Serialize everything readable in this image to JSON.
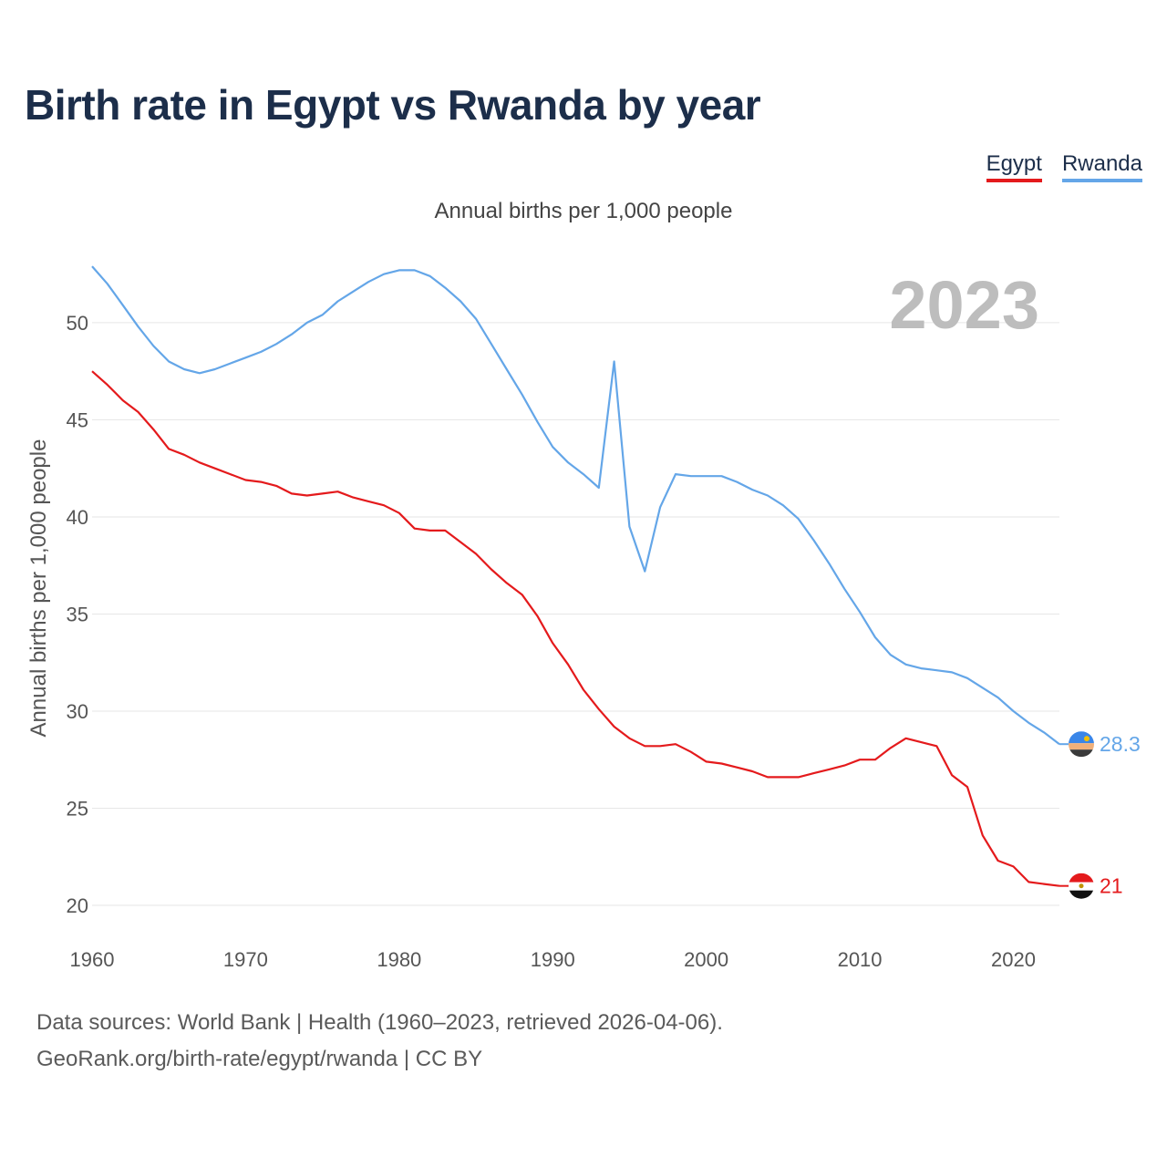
{
  "title": "Birth rate in Egypt vs Rwanda by year",
  "legend": {
    "egypt": "Egypt",
    "rwanda": "Rwanda"
  },
  "subtitle": "Annual births per 1,000 people",
  "year_label": "2023",
  "footer": {
    "line1": "Data sources: World Bank | Health (1960–2023, retrieved 2026-04-06).",
    "line2": "GeoRank.org/birth-rate/egypt/rwanda | CC BY"
  },
  "colors": {
    "egypt": "#e41a1c",
    "rwanda": "#64a6e8",
    "grid": "#e6e6e6",
    "axis_text": "#555555",
    "year": "#bdbdbd"
  },
  "chart_data": {
    "type": "line",
    "title": "Birth rate in Egypt vs Rwanda by year",
    "xlabel": "",
    "ylabel": "Annual births per 1,000 people",
    "xlim": [
      1960,
      2023
    ],
    "ylim": [
      20,
      53
    ],
    "x_ticks": [
      1960,
      1970,
      1980,
      1990,
      2000,
      2010,
      2020
    ],
    "y_ticks": [
      20,
      25,
      30,
      35,
      40,
      45,
      50
    ],
    "grid": true,
    "legend": "top-right",
    "x": [
      1960,
      1961,
      1962,
      1963,
      1964,
      1965,
      1966,
      1967,
      1968,
      1969,
      1970,
      1971,
      1972,
      1973,
      1974,
      1975,
      1976,
      1977,
      1978,
      1979,
      1980,
      1981,
      1982,
      1983,
      1984,
      1985,
      1986,
      1987,
      1988,
      1989,
      1990,
      1991,
      1992,
      1993,
      1994,
      1995,
      1996,
      1997,
      1998,
      1999,
      2000,
      2001,
      2002,
      2003,
      2004,
      2005,
      2006,
      2007,
      2008,
      2009,
      2010,
      2011,
      2012,
      2013,
      2014,
      2015,
      2016,
      2017,
      2018,
      2019,
      2020,
      2021,
      2022,
      2023
    ],
    "series": [
      {
        "name": "Egypt",
        "end_label": "21",
        "values": [
          47.5,
          46.8,
          46.0,
          45.4,
          44.5,
          43.5,
          43.2,
          42.8,
          42.5,
          42.2,
          41.9,
          41.8,
          41.6,
          41.2,
          41.1,
          41.2,
          41.3,
          41.0,
          40.8,
          40.6,
          40.2,
          39.4,
          39.3,
          39.3,
          38.7,
          38.1,
          37.3,
          36.6,
          36.0,
          34.9,
          33.5,
          32.4,
          31.1,
          30.1,
          29.2,
          28.6,
          28.2,
          28.2,
          28.3,
          27.9,
          27.4,
          27.3,
          27.1,
          26.9,
          26.6,
          26.6,
          26.6,
          26.8,
          27.0,
          27.2,
          27.5,
          27.5,
          28.1,
          28.6,
          28.4,
          28.2,
          26.7,
          26.1,
          23.6,
          22.3,
          22.0,
          21.2,
          21.1,
          21.0
        ]
      },
      {
        "name": "Rwanda",
        "end_label": "28.3",
        "values": [
          52.9,
          52.0,
          50.9,
          49.8,
          48.8,
          48.0,
          47.6,
          47.4,
          47.6,
          47.9,
          48.2,
          48.5,
          48.9,
          49.4,
          50.0,
          50.4,
          51.1,
          51.6,
          52.1,
          52.5,
          52.7,
          52.7,
          52.4,
          51.8,
          51.1,
          50.2,
          48.9,
          47.6,
          46.3,
          44.9,
          43.6,
          42.8,
          42.2,
          41.5,
          48.0,
          39.5,
          37.2,
          40.5,
          42.2,
          42.1,
          42.1,
          42.1,
          41.8,
          41.4,
          41.1,
          40.6,
          39.9,
          38.8,
          37.6,
          36.3,
          35.1,
          33.8,
          32.9,
          32.4,
          32.2,
          32.1,
          32.0,
          31.7,
          31.2,
          30.7,
          30.0,
          29.4,
          28.9,
          28.3
        ]
      }
    ]
  }
}
